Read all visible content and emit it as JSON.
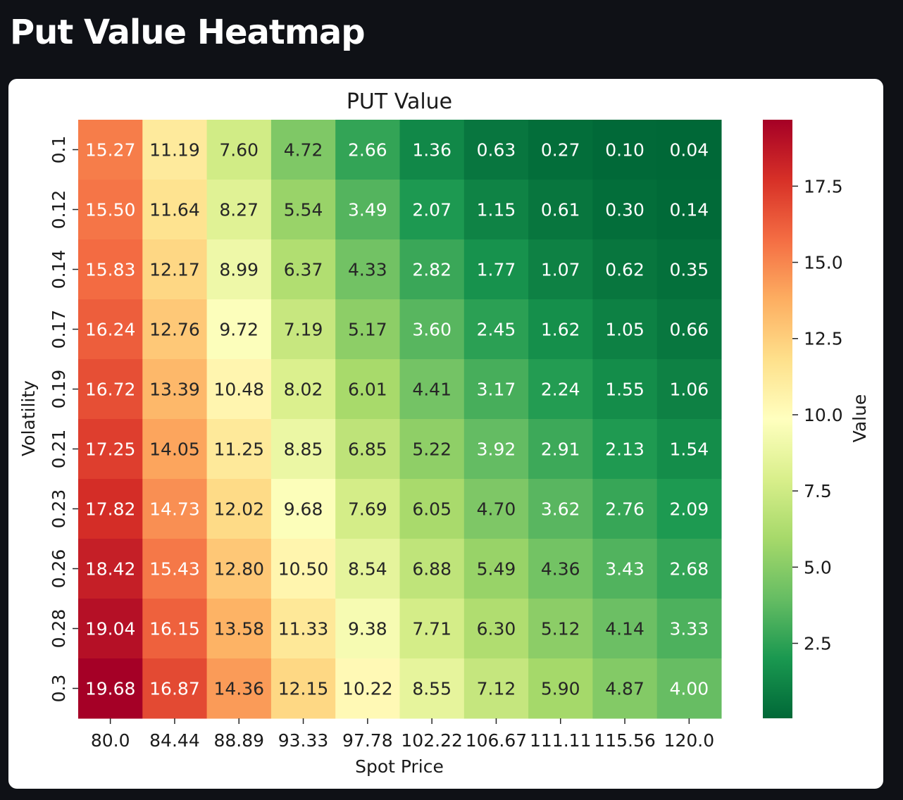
{
  "page": {
    "title": "Put Value Heatmap"
  },
  "chart_data": {
    "type": "heatmap",
    "title": "PUT Value",
    "xlabel": "Spot Price",
    "ylabel": "Volatility",
    "x": [
      "80.0",
      "84.44",
      "88.89",
      "93.33",
      "97.78",
      "102.22",
      "106.67",
      "111.11",
      "115.56",
      "120.0"
    ],
    "y": [
      "0.1",
      "0.12",
      "0.14",
      "0.17",
      "0.19",
      "0.21",
      "0.23",
      "0.26",
      "0.28",
      "0.3"
    ],
    "values": [
      [
        15.27,
        11.19,
        7.6,
        4.72,
        2.66,
        1.36,
        0.63,
        0.27,
        0.1,
        0.04
      ],
      [
        15.5,
        11.64,
        8.27,
        5.54,
        3.49,
        2.07,
        1.15,
        0.61,
        0.3,
        0.14
      ],
      [
        15.83,
        12.17,
        8.99,
        6.37,
        4.33,
        2.82,
        1.77,
        1.07,
        0.62,
        0.35
      ],
      [
        16.24,
        12.76,
        9.72,
        7.19,
        5.17,
        3.6,
        2.45,
        1.62,
        1.05,
        0.66
      ],
      [
        16.72,
        13.39,
        10.48,
        8.02,
        6.01,
        4.41,
        3.17,
        2.24,
        1.55,
        1.06
      ],
      [
        17.25,
        14.05,
        11.25,
        8.85,
        6.85,
        5.22,
        3.92,
        2.91,
        2.13,
        1.54
      ],
      [
        17.82,
        14.73,
        12.02,
        9.68,
        7.69,
        6.05,
        4.7,
        3.62,
        2.76,
        2.09
      ],
      [
        18.42,
        15.43,
        12.8,
        10.5,
        8.54,
        6.88,
        5.49,
        4.36,
        3.43,
        2.68
      ],
      [
        19.04,
        16.15,
        13.58,
        11.33,
        9.38,
        7.71,
        6.3,
        5.12,
        4.14,
        3.33
      ],
      [
        19.68,
        16.87,
        14.36,
        12.15,
        10.22,
        8.55,
        7.12,
        5.9,
        4.87,
        4.0
      ]
    ],
    "colorbar": {
      "label": "Value",
      "range": [
        0.04,
        19.68
      ],
      "ticks": [
        "2.5",
        "5.0",
        "7.5",
        "10.0",
        "12.5",
        "15.0",
        "17.5"
      ],
      "colormap": "RdYlGn_r",
      "colors": [
        "#006837",
        "#1a9850",
        "#66bd63",
        "#a6d96a",
        "#d9ef8b",
        "#ffffbf",
        "#fee08b",
        "#fdae61",
        "#f46d43",
        "#d73027",
        "#a50026"
      ]
    },
    "annotations": true
  }
}
